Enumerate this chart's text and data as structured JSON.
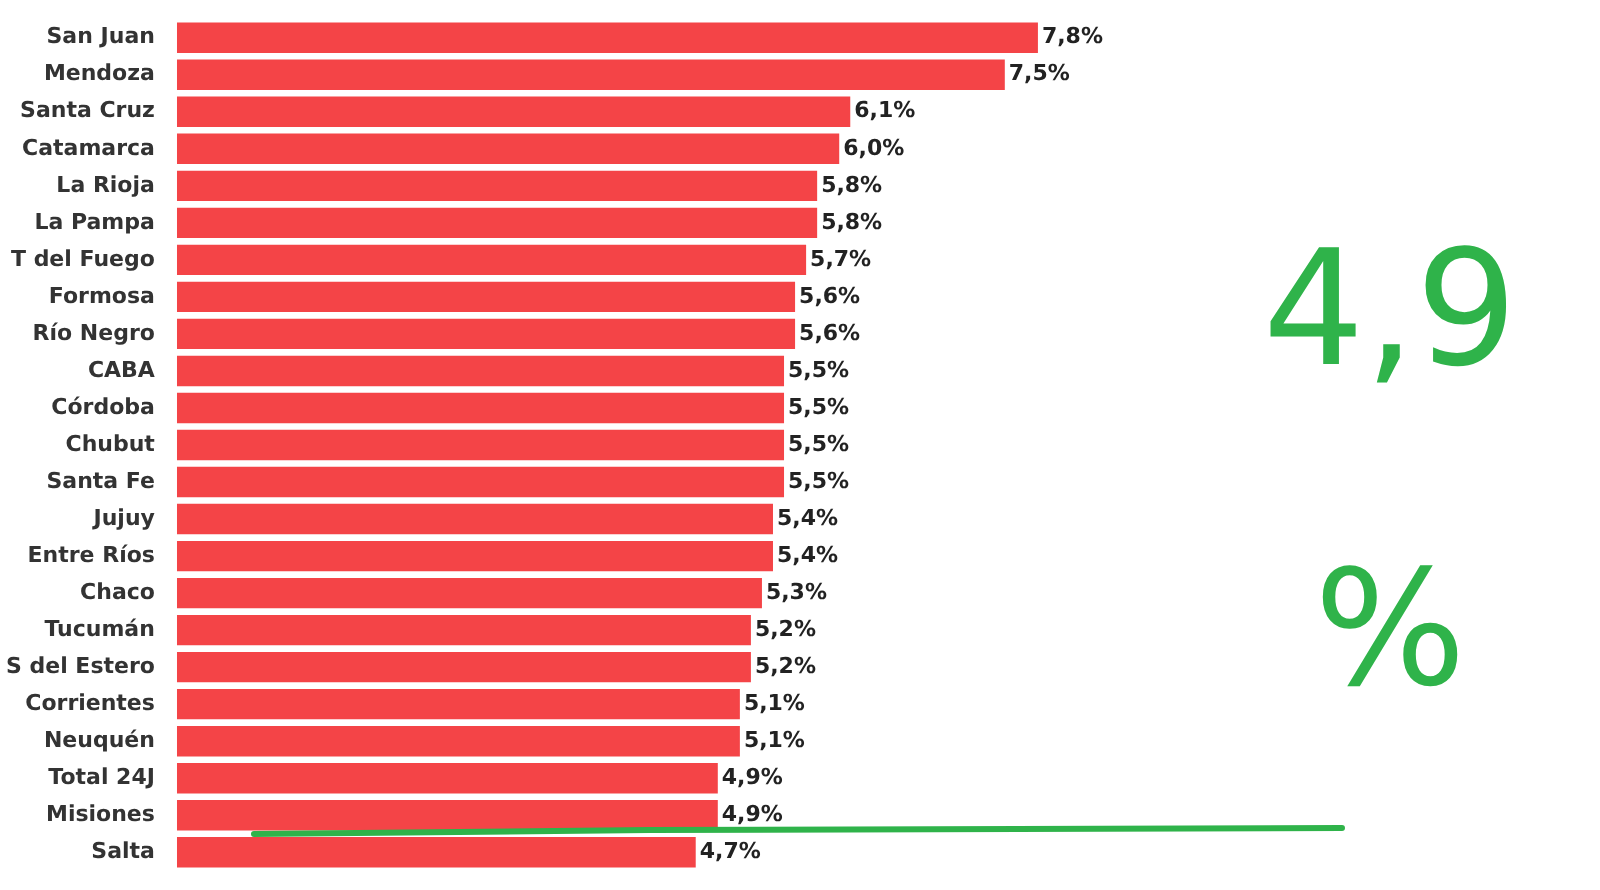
{
  "chart_data": {
    "type": "bar",
    "orientation": "horizontal",
    "categories": [
      "San Juan",
      "Mendoza",
      "Santa Cruz",
      "Catamarca",
      "La Rioja",
      "La Pampa",
      "T del Fuego",
      "Formosa",
      "Río Negro",
      "CABA",
      "Córdoba",
      "Chubut",
      "Santa Fe",
      "Jujuy",
      "Entre Ríos",
      "Chaco",
      "Tucumán",
      "S del Estero",
      "Corrientes",
      "Neuquén",
      "Total 24J",
      "Misiones",
      "Salta"
    ],
    "values": [
      7.8,
      7.5,
      6.1,
      6.0,
      5.8,
      5.8,
      5.7,
      5.6,
      5.6,
      5.5,
      5.5,
      5.5,
      5.5,
      5.4,
      5.4,
      5.3,
      5.2,
      5.2,
      5.1,
      5.1,
      4.9,
      4.9,
      4.7
    ],
    "value_labels": [
      "7,8%",
      "7,5%",
      "6,1%",
      "6,0%",
      "5,8%",
      "5,8%",
      "5,7%",
      "5,6%",
      "5,6%",
      "5,5%",
      "5,5%",
      "5,5%",
      "5,5%",
      "5,4%",
      "5,4%",
      "5,3%",
      "5,2%",
      "5,2%",
      "5,1%",
      "5,1%",
      "4,9%",
      "4,9%",
      "4,7%"
    ],
    "color": "#f44447",
    "legend": false,
    "tick_labels": "y",
    "annotations": [
      "4,9 %"
    ]
  }
}
